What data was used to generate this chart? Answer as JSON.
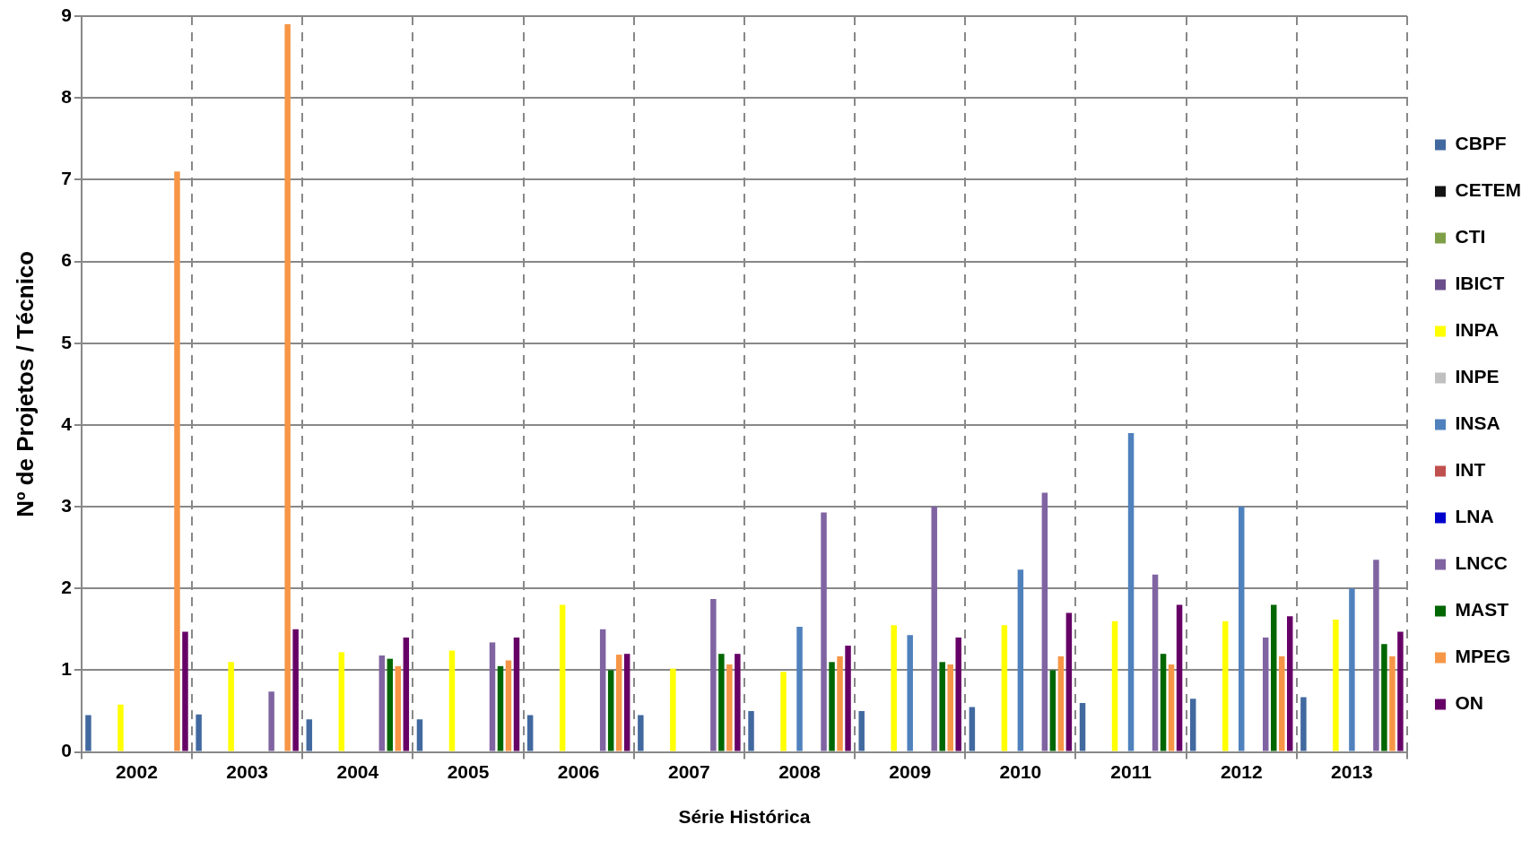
{
  "chart_data": {
    "type": "bar",
    "xlabel": "Série Histórica",
    "ylabel": "Nº de Projetos / Técnico",
    "categories": [
      "2002",
      "2003",
      "2004",
      "2005",
      "2006",
      "2007",
      "2008",
      "2009",
      "2010",
      "2011",
      "2012",
      "2013"
    ],
    "series": [
      {
        "name": "CBPF",
        "color": "#4169a0",
        "values": [
          0.45,
          0.46,
          0.4,
          0.4,
          0.45,
          0.45,
          0.5,
          0.5,
          0.55,
          0.6,
          0.65,
          0.67
        ]
      },
      {
        "name": "CETEM",
        "color": "#141414",
        "values": [
          0,
          0,
          0,
          0,
          0,
          0,
          0,
          0,
          0,
          0,
          0,
          0
        ]
      },
      {
        "name": "CTI",
        "color": "#7f9f46",
        "values": [
          0,
          0,
          0,
          0,
          0,
          0,
          0,
          0,
          0,
          0,
          0,
          0
        ]
      },
      {
        "name": "IBICT",
        "color": "#6a4e8c",
        "values": [
          0,
          0,
          0,
          0,
          0,
          0,
          0,
          0,
          0,
          0,
          0,
          0
        ]
      },
      {
        "name": "INPA",
        "color": "#ffff00",
        "values": [
          0.58,
          1.1,
          1.22,
          1.24,
          1.8,
          1.02,
          0.98,
          1.55,
          1.55,
          1.6,
          1.6,
          1.62
        ]
      },
      {
        "name": "INPE",
        "color": "#c0c0c0",
        "values": [
          0,
          0,
          0,
          0,
          0,
          0,
          0,
          0,
          0,
          0,
          0,
          0
        ]
      },
      {
        "name": "INSA",
        "color": "#4f81bd",
        "values": [
          0,
          0,
          0,
          0,
          0,
          0,
          1.53,
          1.43,
          2.23,
          3.9,
          3.0,
          2.0
        ]
      },
      {
        "name": "INT",
        "color": "#c0504d",
        "values": [
          0,
          0,
          0,
          0,
          0,
          0,
          0,
          0,
          0,
          0,
          0,
          0
        ]
      },
      {
        "name": "LNA",
        "color": "#0000cc",
        "values": [
          0,
          0,
          0,
          0,
          0,
          0,
          0,
          0,
          0,
          0,
          0,
          0
        ]
      },
      {
        "name": "LNCC",
        "color": "#8064a2",
        "values": [
          0,
          0.74,
          1.18,
          1.34,
          1.5,
          1.87,
          2.93,
          3.0,
          3.17,
          2.17,
          1.4,
          2.35
        ]
      },
      {
        "name": "MAST",
        "color": "#006600",
        "values": [
          0,
          0,
          1.14,
          1.05,
          1.0,
          1.2,
          1.1,
          1.1,
          1.0,
          1.2,
          1.8,
          1.32
        ]
      },
      {
        "name": "MPEG",
        "color": "#f79646",
        "values": [
          7.1,
          8.9,
          1.05,
          1.12,
          1.19,
          1.07,
          1.17,
          1.07,
          1.17,
          1.07,
          1.17,
          1.17
        ]
      },
      {
        "name": "ON",
        "color": "#660066",
        "values": [
          1.47,
          1.5,
          1.4,
          1.4,
          1.2,
          1.2,
          1.3,
          1.4,
          1.7,
          1.8,
          1.66,
          1.47
        ]
      }
    ],
    "ylim": [
      0,
      9
    ],
    "yticks": [
      0,
      1,
      2,
      3,
      4,
      5,
      6,
      7,
      8,
      9
    ],
    "grid": true,
    "legend": "right"
  }
}
